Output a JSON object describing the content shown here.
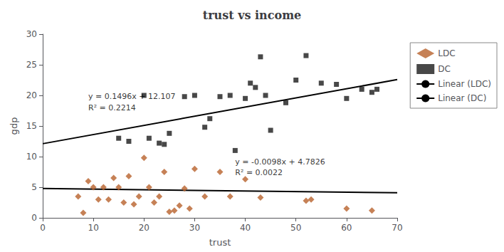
{
  "chart_data": {
    "type": "scatter",
    "title": "trust vs income",
    "xlabel": "trust",
    "ylabel": "gdp",
    "xlim": [
      0,
      70
    ],
    "ylim": [
      0,
      30
    ],
    "xticks": [
      0,
      10,
      20,
      30,
      40,
      50,
      60,
      70
    ],
    "yticks": [
      0,
      5,
      10,
      15,
      20,
      25,
      30
    ],
    "grid": false,
    "legend": "right",
    "series": [
      {
        "name": "LDC",
        "type": "scatter",
        "marker": "diamond",
        "color": "#B8622C",
        "x": [
          7,
          8,
          9,
          10,
          11,
          12,
          13,
          14,
          15,
          16,
          17,
          18,
          19,
          20,
          21,
          22,
          23,
          24,
          25,
          26,
          27,
          28,
          29,
          30,
          32,
          35,
          37,
          40,
          43,
          52,
          53,
          60,
          65
        ],
        "values": [
          3.5,
          0.8,
          6.0,
          5.0,
          3.0,
          5.0,
          3.0,
          6.5,
          5.0,
          2.5,
          6.8,
          2.2,
          3.5,
          9.8,
          5.0,
          2.5,
          3.5,
          7.5,
          1.0,
          1.2,
          2.0,
          4.8,
          1.5,
          8.0,
          3.5,
          7.5,
          3.5,
          6.3,
          3.3,
          2.8,
          3.0,
          1.5,
          1.2
        ]
      },
      {
        "name": "DC",
        "type": "scatter",
        "marker": "square",
        "color": "#1a1a1a",
        "x": [
          15,
          17,
          20,
          21,
          23,
          24,
          25,
          28,
          30,
          32,
          33,
          35,
          37,
          38,
          40,
          41,
          42,
          43,
          44,
          45,
          48,
          50,
          52,
          55,
          58,
          60,
          63,
          65,
          66
        ],
        "values": [
          13.0,
          12.5,
          20.0,
          13.0,
          12.2,
          12.0,
          13.8,
          19.8,
          20.0,
          14.8,
          16.2,
          19.8,
          20.0,
          11.0,
          19.5,
          22.0,
          21.3,
          26.3,
          20.0,
          14.3,
          18.8,
          22.5,
          26.5,
          22.0,
          21.8,
          19.5,
          21.0,
          20.5,
          21.0
        ]
      },
      {
        "name": "Linear (LDC)",
        "type": "line",
        "line_style": "solid",
        "color": "#000000",
        "x": [
          0,
          70
        ],
        "values": [
          4.7826,
          4.0966
        ]
      },
      {
        "name": "Linear (DC)",
        "type": "line",
        "line_style": "solid",
        "color": "#000000",
        "x": [
          0,
          70
        ],
        "values": [
          12.107,
          22.579
        ]
      }
    ],
    "annotations": [
      {
        "text": "y = 0.1496x + 12.107",
        "x": 9,
        "y": 19.2
      },
      {
        "text": "R² = 0.2214",
        "x": 9,
        "y": 17.3
      },
      {
        "text": "y = -0.0098x + 4.7826",
        "x": 38,
        "y": 8.5
      },
      {
        "text": "R² = 0.0022",
        "x": 38,
        "y": 6.8
      }
    ]
  }
}
